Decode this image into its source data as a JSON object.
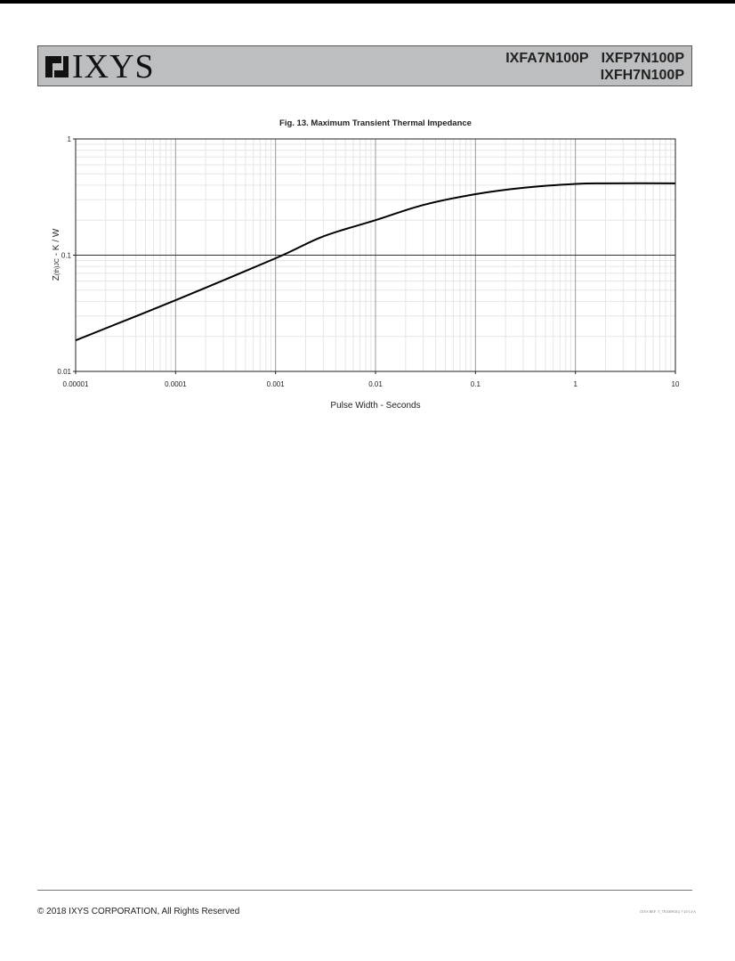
{
  "header": {
    "brand": "IXYS",
    "part_numbers": [
      "IXFA7N100P",
      "IXFP7N100P",
      "IXFH7N100P"
    ]
  },
  "chart_data": {
    "type": "line",
    "title": "Fig. 13. Maximum Transient Thermal Impedance",
    "xlabel": "Pulse Width - Seconds",
    "ylabel": "Z(th)JC - K / W",
    "ylabel_main": "Z",
    "ylabel_sub": "(th)JC",
    "ylabel_rest": " - K / W",
    "xscale": "log",
    "yscale": "log",
    "xlim": [
      1e-05,
      10
    ],
    "ylim": [
      0.01,
      1
    ],
    "x_tick_labels": [
      "0.00001",
      "0.0001",
      "0.001",
      "0.01",
      "0.1",
      "1",
      "10"
    ],
    "y_tick_labels": [
      "0.01",
      "0.1",
      "1"
    ],
    "grid": true,
    "series": [
      {
        "x": [
          1e-05,
          0.0001,
          0.001,
          0.003,
          0.01,
          0.03,
          0.1,
          0.3,
          1,
          2,
          10
        ],
        "y": [
          0.0185,
          0.041,
          0.094,
          0.145,
          0.2,
          0.27,
          0.335,
          0.38,
          0.41,
          0.415,
          0.415
        ]
      }
    ],
    "colors": {
      "line": "#000000",
      "major_grid": "#9a9a9a",
      "minor_grid": "#e6e6e6"
    }
  },
  "footer": {
    "copyright": "© 2018 IXYS CORPORATION, All Rights Reserved",
    "ref": "IXYS REF: T_7N100P(3G) 7-25-14-A"
  }
}
